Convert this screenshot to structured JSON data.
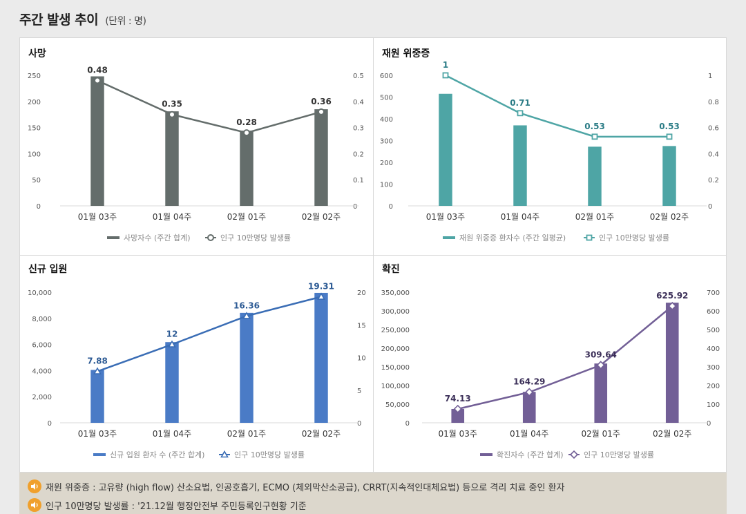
{
  "header": {
    "title": "주간 발생 추이",
    "unit": "(단위 : 명)"
  },
  "chart_data": [
    {
      "type": "bar",
      "title": "사망",
      "categories": [
        "01월 03주",
        "01월 04주",
        "02월 01주",
        "02월 02주"
      ],
      "series": [
        {
          "name": "사망자수 (주간 합계)",
          "kind": "bar",
          "axis": "left",
          "values": [
            248,
            181,
            144,
            185
          ],
          "color": "#646d6b"
        },
        {
          "name": "인구 10만명당 발생률",
          "kind": "line",
          "axis": "right",
          "values": [
            0.48,
            0.35,
            0.28,
            0.36
          ],
          "labels": [
            "0.48",
            "0.35",
            "0.28",
            "0.36"
          ],
          "color": "#646d6b",
          "marker": "circle"
        }
      ],
      "left_axis": {
        "min": 0,
        "max": 250,
        "ticks": [
          "0",
          "50",
          "100",
          "150",
          "200",
          "250"
        ]
      },
      "right_axis": {
        "min": 0,
        "max": 0.5,
        "ticks": [
          "0",
          "0.1",
          "0.2",
          "0.3",
          "0.4",
          "0.5"
        ]
      },
      "label_color": "#333333"
    },
    {
      "type": "bar",
      "title": "재원 위중증",
      "categories": [
        "01월 03주",
        "01월 04주",
        "02월 01주",
        "02월 02주"
      ],
      "series": [
        {
          "name": "재원 위중증 환자수 (주간 일평균)",
          "kind": "bar",
          "axis": "left",
          "values": [
            515,
            370,
            272,
            275
          ],
          "color": "#4ea5a5"
        },
        {
          "name": "인구 10만명당 발생률",
          "kind": "line",
          "axis": "right",
          "values": [
            1,
            0.71,
            0.53,
            0.53
          ],
          "labels": [
            "1",
            "0.71",
            "0.53",
            "0.53"
          ],
          "color": "#4ea5a5",
          "marker": "square"
        }
      ],
      "left_axis": {
        "min": 0,
        "max": 600,
        "ticks": [
          "0",
          "100",
          "200",
          "300",
          "400",
          "500",
          "600"
        ]
      },
      "right_axis": {
        "min": 0,
        "max": 1,
        "ticks": [
          "0",
          "0.2",
          "0.4",
          "0.6",
          "0.8",
          "1"
        ]
      },
      "label_color": "#2b7c86"
    },
    {
      "type": "bar",
      "title": "신규 입원",
      "categories": [
        "01월 03주",
        "01월 04주",
        "02월 01주",
        "02월 02주"
      ],
      "series": [
        {
          "name": "신규 입원 환자 수 (주간 합계)",
          "kind": "bar",
          "axis": "left",
          "values": [
            4050,
            6180,
            8420,
            9950
          ],
          "color": "#4a7bc6"
        },
        {
          "name": "인구 10만명당 발생률",
          "kind": "line",
          "axis": "right",
          "values": [
            7.88,
            12,
            16.36,
            19.31
          ],
          "labels": [
            "7.88",
            "12",
            "16.36",
            "19.31"
          ],
          "color": "#3a6db5",
          "marker": "triangle"
        }
      ],
      "left_axis": {
        "min": 0,
        "max": 10000,
        "ticks": [
          "0",
          "2,000",
          "4,000",
          "6,000",
          "8,000",
          "10,000"
        ]
      },
      "right_axis": {
        "min": 0,
        "max": 20,
        "ticks": [
          "0",
          "5",
          "10",
          "15",
          "20"
        ]
      },
      "label_color": "#2c5a94"
    },
    {
      "type": "bar",
      "title": "확진",
      "categories": [
        "01월 03주",
        "01월 04주",
        "02월 01주",
        "02월 02주"
      ],
      "series": [
        {
          "name": "확진자수 (주간 합계)",
          "kind": "bar",
          "axis": "left",
          "values": [
            37000,
            83000,
            159000,
            322000
          ],
          "color": "#725f96"
        },
        {
          "name": "인구 10만명당 발생률",
          "kind": "line",
          "axis": "right",
          "values": [
            74.13,
            164.29,
            309.64,
            625.92
          ],
          "labels": [
            "74.13",
            "164.29",
            "309.64",
            "625.92"
          ],
          "color": "#725f96",
          "marker": "diamond"
        }
      ],
      "left_axis": {
        "min": 0,
        "max": 350000,
        "ticks": [
          "0",
          "50,000",
          "100,000",
          "150,000",
          "200,000",
          "250,000",
          "300,000",
          "350,000"
        ]
      },
      "right_axis": {
        "min": 0,
        "max": 700,
        "ticks": [
          "0",
          "100",
          "200",
          "300",
          "400",
          "500",
          "600",
          "700"
        ]
      },
      "label_color": "#3b2f58"
    }
  ],
  "notes": [
    {
      "icon": "speaker-icon",
      "text": "재원 위중증 : 고유량 (high flow) 산소요법, 인공호흡기, ECMO (체외막산소공급), CRRT(지속적인대체요법) 등으로 격리 치료 중인 환자"
    },
    {
      "icon": "speaker-icon",
      "text": "인구 10만명당 발생률 : '21.12월 행정안전부 주민등록인구현황 기준"
    }
  ]
}
